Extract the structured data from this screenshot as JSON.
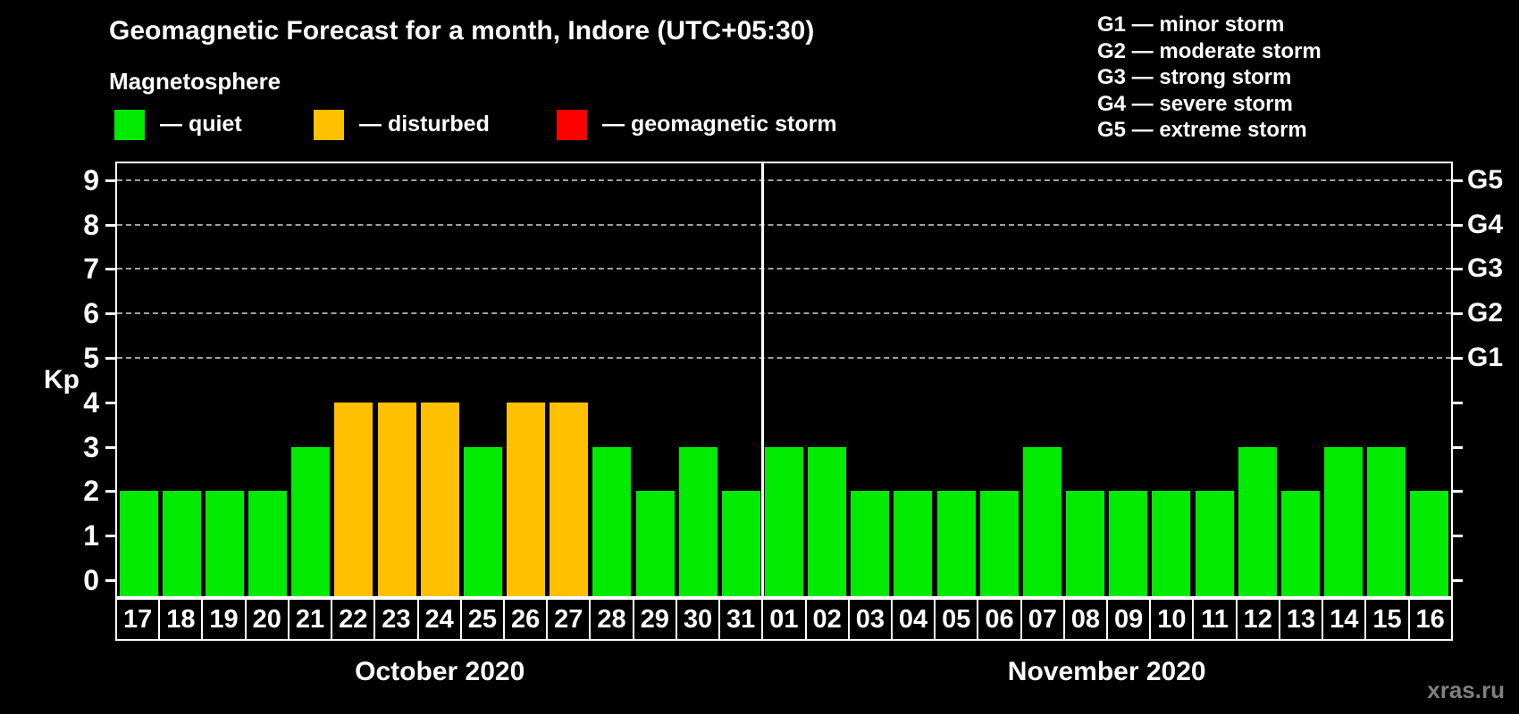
{
  "page": {
    "background": "#000000",
    "watermark": "xras.ru"
  },
  "header": {
    "title": "Geomagnetic Forecast for a month, Indore (UTC+05:30)",
    "subtitle": "Magnetosphere",
    "legend": [
      {
        "label": "— quiet",
        "color": "#00EB00"
      },
      {
        "label": "— disturbed",
        "color": "#FFC000"
      },
      {
        "label": "— geomagnetic storm",
        "color": "#FF0000"
      }
    ],
    "g_legend": [
      "G1 — minor storm",
      "G2 — moderate storm",
      "G3 — strong storm",
      "G4 — severe storm",
      "G5 — extreme storm"
    ]
  },
  "chart_data": {
    "type": "bar",
    "title": "Geomagnetic Forecast for a month, Indore (UTC+05:30)",
    "ylabel": "Kp",
    "xlabel": "",
    "ylim": [
      0,
      9
    ],
    "y_ticks": [
      0,
      1,
      2,
      3,
      4,
      5,
      6,
      7,
      8,
      9
    ],
    "gridlines_kp": [
      5,
      6,
      7,
      8,
      9
    ],
    "grid": "dashed horizontal at G-storm levels only",
    "legend_position": "top",
    "right_axis_labels": [
      {
        "label": "G1",
        "kp": 5
      },
      {
        "label": "G2",
        "kp": 6
      },
      {
        "label": "G3",
        "kp": 7
      },
      {
        "label": "G4",
        "kp": 8
      },
      {
        "label": "G5",
        "kp": 9
      }
    ],
    "status_colors": {
      "quiet": "#00EB00",
      "disturbed": "#FFC000",
      "storm": "#FF0000"
    },
    "months": [
      {
        "label": "October 2020",
        "start_index": 0,
        "num_days": 15
      },
      {
        "label": "November 2020",
        "start_index": 15,
        "num_days": 16
      }
    ],
    "bars": [
      {
        "day": "17",
        "kp": 2,
        "status": "quiet"
      },
      {
        "day": "18",
        "kp": 2,
        "status": "quiet"
      },
      {
        "day": "19",
        "kp": 2,
        "status": "quiet"
      },
      {
        "day": "20",
        "kp": 2,
        "status": "quiet"
      },
      {
        "day": "21",
        "kp": 3,
        "status": "quiet"
      },
      {
        "day": "22",
        "kp": 4,
        "status": "disturbed"
      },
      {
        "day": "23",
        "kp": 4,
        "status": "disturbed"
      },
      {
        "day": "24",
        "kp": 4,
        "status": "disturbed"
      },
      {
        "day": "25",
        "kp": 3,
        "status": "quiet"
      },
      {
        "day": "26",
        "kp": 4,
        "status": "disturbed"
      },
      {
        "day": "27",
        "kp": 4,
        "status": "disturbed"
      },
      {
        "day": "28",
        "kp": 3,
        "status": "quiet"
      },
      {
        "day": "29",
        "kp": 2,
        "status": "quiet"
      },
      {
        "day": "30",
        "kp": 3,
        "status": "quiet"
      },
      {
        "day": "31",
        "kp": 2,
        "status": "quiet"
      },
      {
        "day": "01",
        "kp": 3,
        "status": "quiet"
      },
      {
        "day": "02",
        "kp": 3,
        "status": "quiet"
      },
      {
        "day": "03",
        "kp": 2,
        "status": "quiet"
      },
      {
        "day": "04",
        "kp": 2,
        "status": "quiet"
      },
      {
        "day": "05",
        "kp": 2,
        "status": "quiet"
      },
      {
        "day": "06",
        "kp": 2,
        "status": "quiet"
      },
      {
        "day": "07",
        "kp": 3,
        "status": "quiet"
      },
      {
        "day": "08",
        "kp": 2,
        "status": "quiet"
      },
      {
        "day": "09",
        "kp": 2,
        "status": "quiet"
      },
      {
        "day": "10",
        "kp": 2,
        "status": "quiet"
      },
      {
        "day": "11",
        "kp": 2,
        "status": "quiet"
      },
      {
        "day": "12",
        "kp": 3,
        "status": "quiet"
      },
      {
        "day": "13",
        "kp": 2,
        "status": "quiet"
      },
      {
        "day": "14",
        "kp": 3,
        "status": "quiet"
      },
      {
        "day": "15",
        "kp": 3,
        "status": "quiet"
      },
      {
        "day": "16",
        "kp": 2,
        "status": "quiet"
      }
    ]
  }
}
